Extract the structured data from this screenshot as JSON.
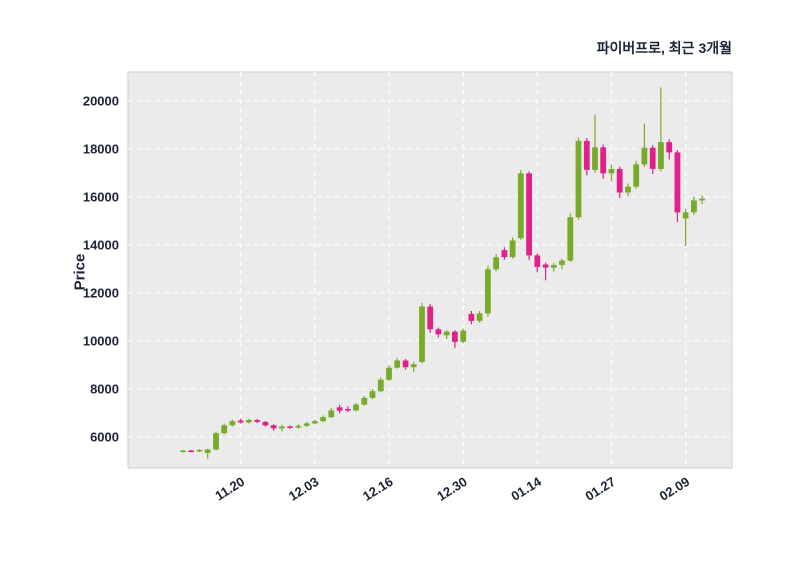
{
  "chart_data": {
    "type": "candlestick",
    "title": "파이버프로, 최근 3개월",
    "ylabel": "Price",
    "xlabel": "",
    "ylim": [
      4700,
      21200
    ],
    "yticks": [
      6000,
      8000,
      10000,
      12000,
      14000,
      16000,
      18000,
      20000
    ],
    "xticks": [
      {
        "index": 7,
        "label": "11.20"
      },
      {
        "index": 16,
        "label": "12.03"
      },
      {
        "index": 25,
        "label": "12.16"
      },
      {
        "index": 34,
        "label": "12.30"
      },
      {
        "index": 43,
        "label": "01.14"
      },
      {
        "index": 52,
        "label": "01.27"
      },
      {
        "index": 61,
        "label": "02.09"
      }
    ],
    "up_color": "#77ab29",
    "down_color": "#e0218a",
    "plot_bg": "#ebebeb",
    "grid_color": "#ffffff",
    "grid_dashed": true,
    "legend": "none",
    "candles_format": [
      "open",
      "high",
      "low",
      "close"
    ],
    "candles": [
      [
        5380,
        5460,
        5340,
        5430
      ],
      [
        5430,
        5450,
        5350,
        5390
      ],
      [
        5390,
        5480,
        5360,
        5450
      ],
      [
        5330,
        5500,
        5090,
        5470
      ],
      [
        5470,
        6220,
        5430,
        6150
      ],
      [
        6150,
        6550,
        6100,
        6480
      ],
      [
        6480,
        6720,
        6430,
        6650
      ],
      [
        6680,
        6760,
        6550,
        6600
      ],
      [
        6600,
        6760,
        6560,
        6700
      ],
      [
        6700,
        6740,
        6570,
        6620
      ],
      [
        6620,
        6660,
        6420,
        6480
      ],
      [
        6480,
        6520,
        6260,
        6350
      ],
      [
        6350,
        6500,
        6220,
        6430
      ],
      [
        6430,
        6480,
        6330,
        6390
      ],
      [
        6390,
        6520,
        6340,
        6460
      ],
      [
        6460,
        6620,
        6420,
        6560
      ],
      [
        6560,
        6710,
        6520,
        6650
      ],
      [
        6650,
        6890,
        6610,
        6820
      ],
      [
        6820,
        7210,
        6780,
        7100
      ],
      [
        7230,
        7330,
        6980,
        7090
      ],
      [
        7160,
        7270,
        7030,
        7100
      ],
      [
        7100,
        7410,
        7050,
        7340
      ],
      [
        7340,
        7700,
        7290,
        7620
      ],
      [
        7620,
        7990,
        7570,
        7900
      ],
      [
        7900,
        8470,
        7850,
        8380
      ],
      [
        8380,
        8980,
        8330,
        8880
      ],
      [
        8880,
        9280,
        8840,
        9180
      ],
      [
        9180,
        9240,
        8800,
        8900
      ],
      [
        8900,
        9120,
        8700,
        9020
      ],
      [
        9120,
        11580,
        9060,
        11430
      ],
      [
        11430,
        11540,
        10330,
        10480
      ],
      [
        10480,
        10550,
        10140,
        10270
      ],
      [
        10230,
        10460,
        10070,
        10380
      ],
      [
        10380,
        10440,
        9690,
        9960
      ],
      [
        9960,
        10510,
        9890,
        10420
      ],
      [
        11120,
        11240,
        10690,
        10830
      ],
      [
        10830,
        11240,
        10750,
        11140
      ],
      [
        11140,
        13130,
        11000,
        12980
      ],
      [
        12980,
        13620,
        12900,
        13480
      ],
      [
        13780,
        13900,
        13380,
        13490
      ],
      [
        13490,
        14300,
        13430,
        14180
      ],
      [
        14280,
        17120,
        14200,
        16980
      ],
      [
        16980,
        17060,
        13360,
        13560
      ],
      [
        13560,
        13640,
        12850,
        13080
      ],
      [
        13180,
        13260,
        12520,
        13050
      ],
      [
        13050,
        13240,
        12880,
        13160
      ],
      [
        13160,
        13420,
        12980,
        13340
      ],
      [
        13340,
        15300,
        13290,
        15150
      ],
      [
        15150,
        18470,
        15050,
        18330
      ],
      [
        18330,
        18450,
        16890,
        17120
      ],
      [
        17120,
        19420,
        17000,
        18060
      ],
      [
        18060,
        18180,
        16760,
        16980
      ],
      [
        16980,
        17350,
        16640,
        17160
      ],
      [
        17160,
        17260,
        15950,
        16180
      ],
      [
        16180,
        16560,
        16020,
        16420
      ],
      [
        16420,
        17500,
        16330,
        17350
      ],
      [
        17350,
        19050,
        17240,
        18040
      ],
      [
        18040,
        18160,
        16950,
        17160
      ],
      [
        17160,
        20560,
        17060,
        18280
      ],
      [
        18280,
        18400,
        17560,
        17850
      ],
      [
        17850,
        17940,
        14950,
        15350
      ],
      [
        15100,
        15500,
        13950,
        15350
      ],
      [
        15350,
        16000,
        15250,
        15850
      ],
      [
        15850,
        16050,
        15700,
        15920
      ]
    ]
  }
}
